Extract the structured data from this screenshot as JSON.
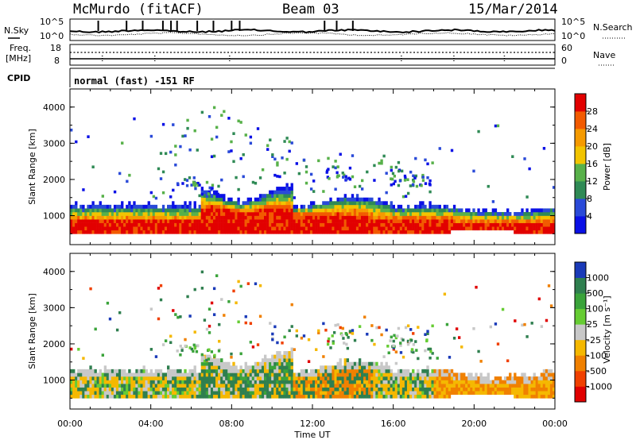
{
  "header": {
    "station": "McMurdo (fitACF)",
    "beam": "Beam 03",
    "date": "15/Mar/2014"
  },
  "top_panels": {
    "nsky_label": "N.Sky",
    "nsky_ticks": [
      "10^5",
      "10^0"
    ],
    "nsearch_label": "N.Search",
    "nsearch_ticks": [
      "10^5",
      "10^0"
    ],
    "freq_label_line1": "Freq.",
    "freq_label_line2": "[MHz]",
    "freq_ticks": [
      "18",
      "8"
    ],
    "nave_label": "Nave",
    "nave_ticks": [
      "60",
      "0"
    ],
    "cpid_label": "CPID",
    "cpid_text": "normal (fast) -151 RF"
  },
  "chart_data": [
    {
      "type": "heatmap",
      "title": "",
      "xlabel": "",
      "ylabel": "Slant Range [km]",
      "colorbar_label": "Power [dB]",
      "colorbar_ticks": [
        "4",
        "8",
        "12",
        "16",
        "20",
        "24",
        "28"
      ],
      "colorbar_colors": [
        "#0a10e6",
        "#2a4ad8",
        "#2f8a55",
        "#58b14a",
        "#f2c400",
        "#f59a00",
        "#f25a00",
        "#e20000"
      ],
      "xlim": [
        0,
        24
      ],
      "ylim": [
        200,
        4500
      ],
      "yticks": [
        "1000",
        "2000",
        "3000",
        "4000"
      ],
      "xticks": [
        "00:00",
        "04:00",
        "08:00",
        "12:00",
        "16:00",
        "20:00",
        "00:00"
      ]
    },
    {
      "type": "heatmap",
      "title": "",
      "xlabel": "Time UT",
      "ylabel": "Slant Range [km]",
      "colorbar_label": "Velocity [m s⁻¹]",
      "colorbar_ticks": [
        "1000",
        "500",
        "100",
        "25",
        "-25",
        "-100",
        "-500",
        "-1000"
      ],
      "colorbar_colors": [
        "#1a3ab8",
        "#2f7f4f",
        "#3aa33a",
        "#66cc33",
        "#c8c8c8",
        "#f5b800",
        "#f08000",
        "#f04000",
        "#e00000"
      ],
      "xlim": [
        0,
        24
      ],
      "ylim": [
        200,
        4500
      ],
      "yticks": [
        "1000",
        "2000",
        "3000",
        "4000"
      ],
      "xticks": [
        "00:00",
        "04:00",
        "08:00",
        "12:00",
        "16:00",
        "20:00",
        "00:00"
      ]
    }
  ]
}
